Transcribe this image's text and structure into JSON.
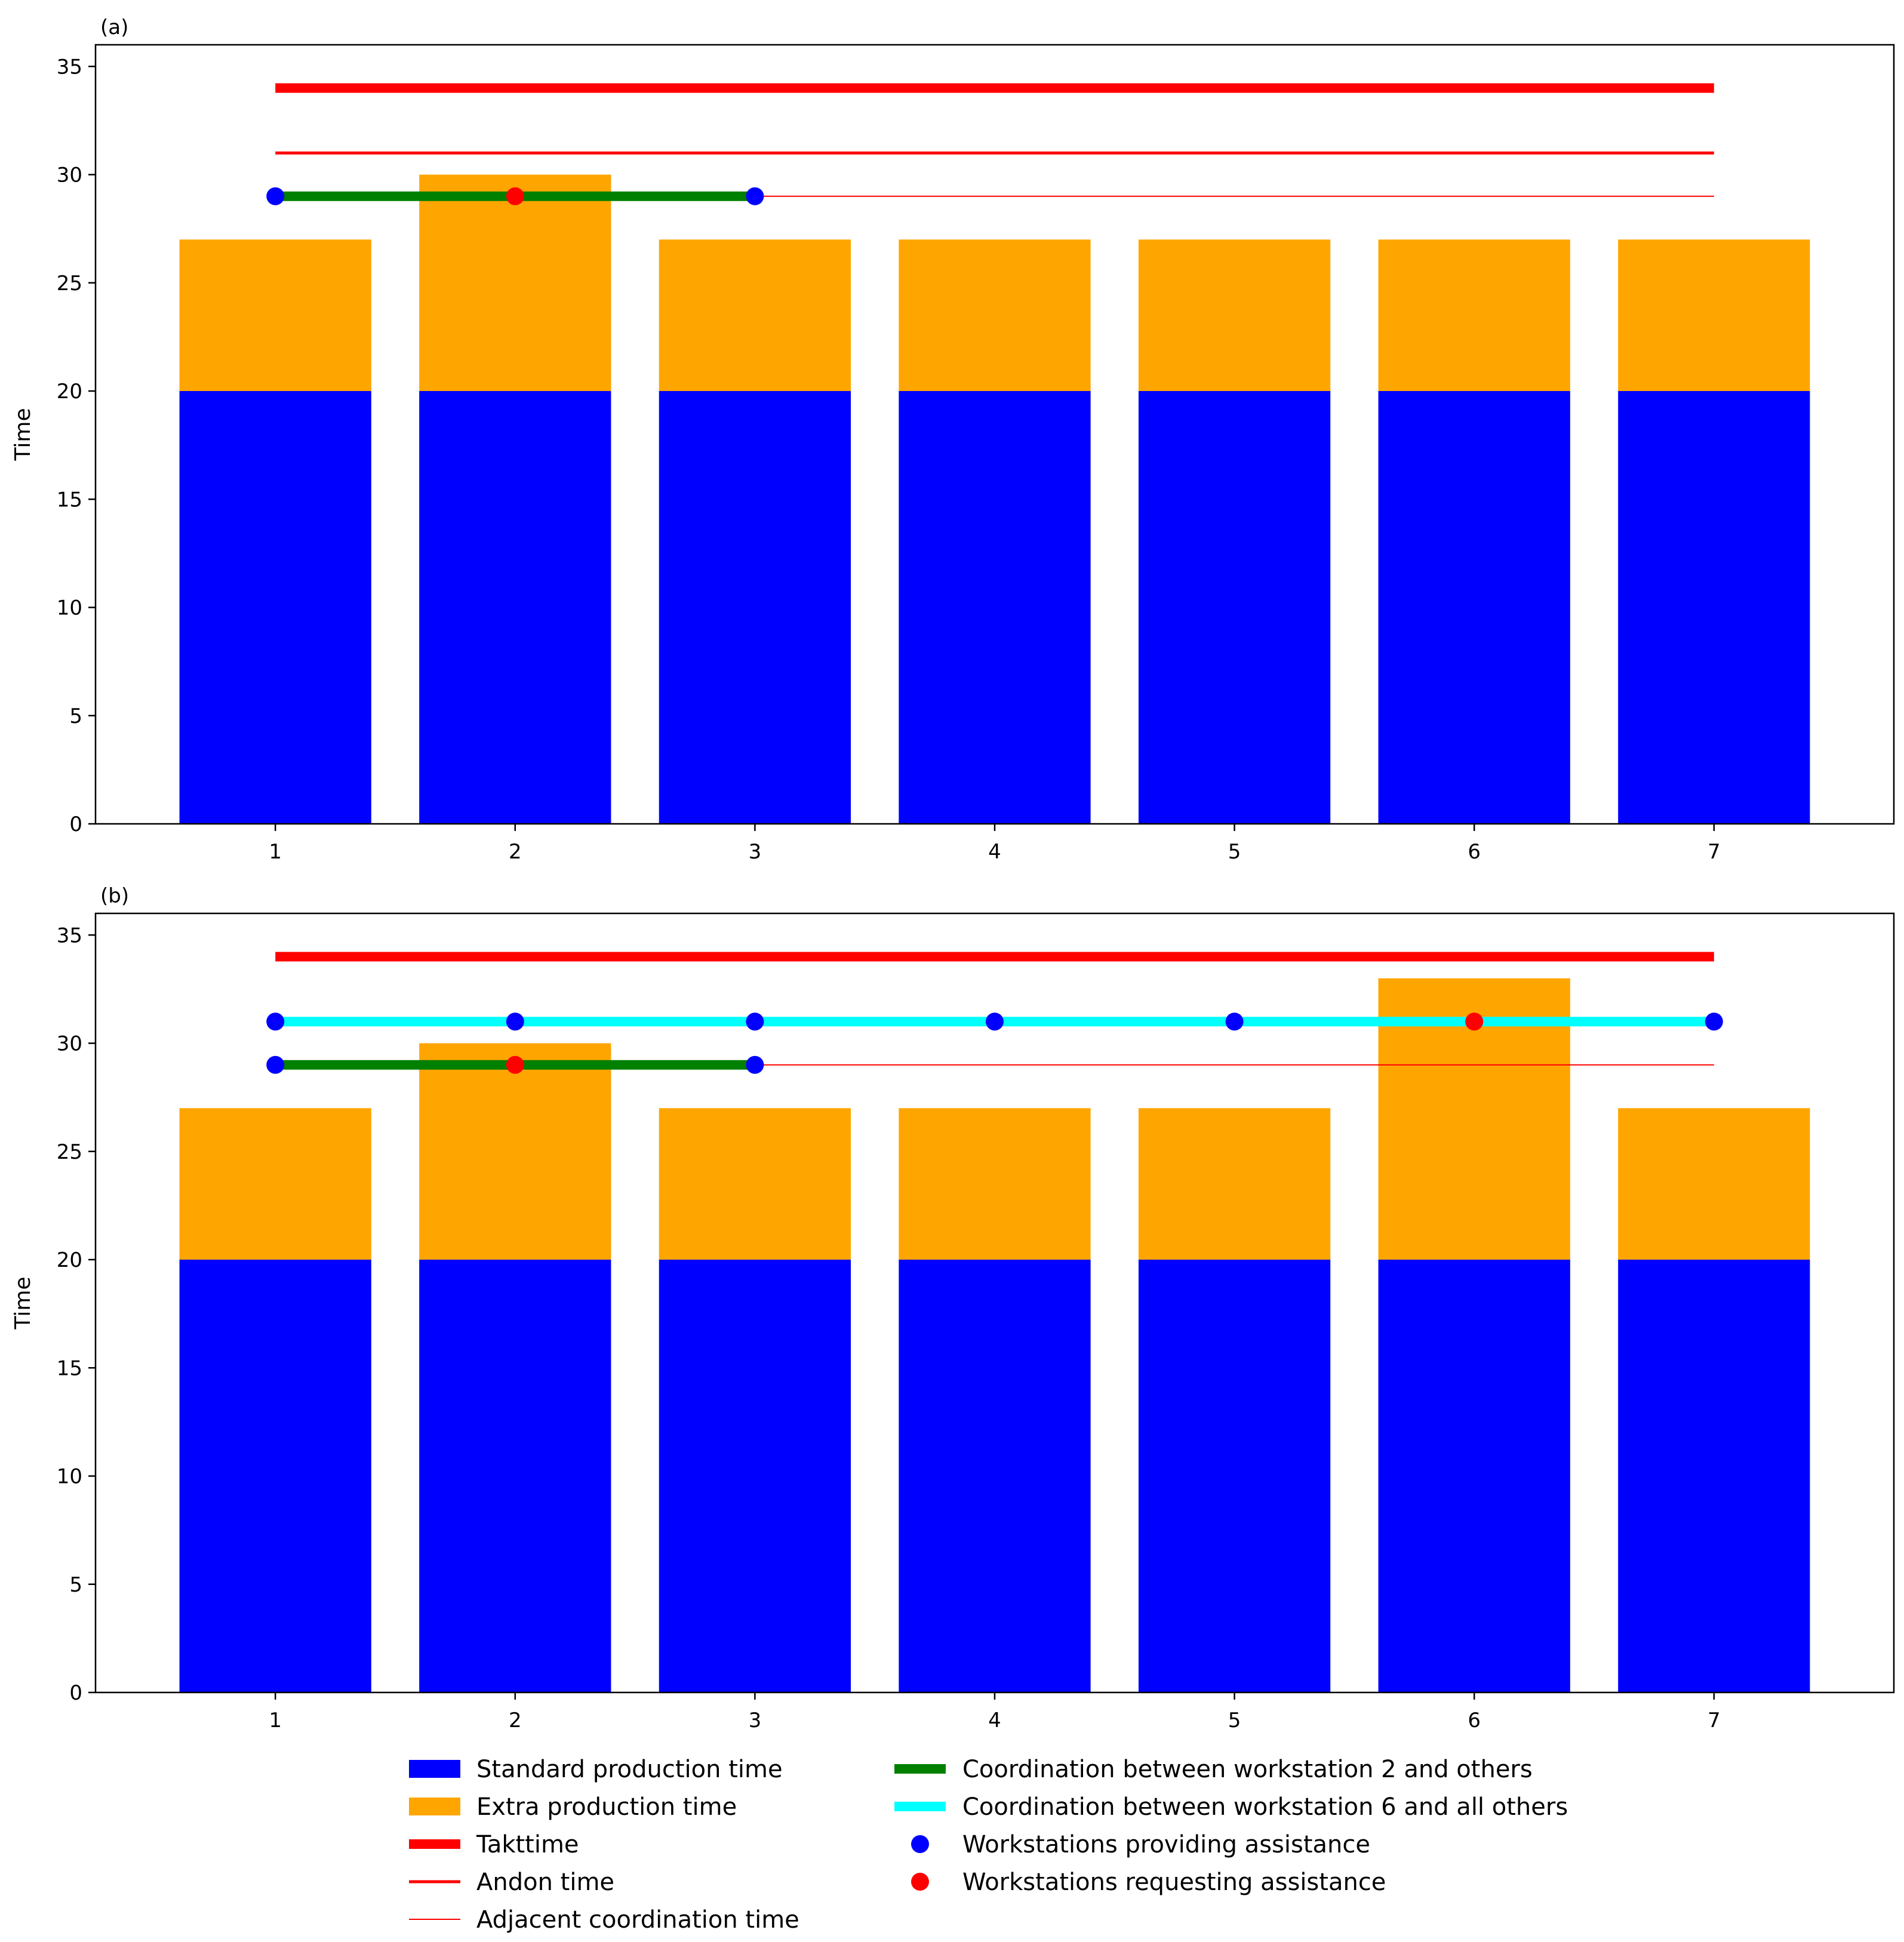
{
  "colors": {
    "standard": "#0000ff",
    "extra": "#ffa500",
    "takt": "#ff0000",
    "green": "#008000",
    "cyan": "#00ffff",
    "helper": "#0000ff",
    "requester": "#ff0000"
  },
  "chart_data": [
    {
      "type": "bar",
      "panel_label": "(a)",
      "ylabel": "Time",
      "xlabel": "",
      "ylim": [
        0,
        36
      ],
      "yticks": [
        "0",
        "5",
        "10",
        "15",
        "20",
        "25",
        "30",
        "35"
      ],
      "categories": [
        "1",
        "2",
        "3",
        "4",
        "5",
        "6",
        "7"
      ],
      "series": [
        {
          "name": "Standard production time",
          "values": [
            20,
            20,
            20,
            20,
            20,
            20,
            20
          ]
        },
        {
          "name": "Extra production time",
          "values": [
            7,
            10,
            7,
            7,
            7,
            7,
            7
          ]
        }
      ],
      "lines": [
        {
          "name": "Takttime",
          "y": 34,
          "x_from": 1,
          "x_to": 7
        },
        {
          "name": "Andon time",
          "y": 31,
          "x_from": 1,
          "x_to": 7
        },
        {
          "name": "Adjacent coordination time",
          "y": 29,
          "x_from": 1,
          "x_to": 7
        },
        {
          "name": "Coordination between workstation 2 and others",
          "y": 29,
          "x_from": 1,
          "x_to": 3
        }
      ],
      "points": [
        {
          "x": 1,
          "y": 29,
          "role": "providing"
        },
        {
          "x": 2,
          "y": 29,
          "role": "requesting"
        },
        {
          "x": 3,
          "y": 29,
          "role": "providing"
        }
      ]
    },
    {
      "type": "bar",
      "panel_label": "(b)",
      "ylabel": "Time",
      "xlabel": "",
      "ylim": [
        0,
        36
      ],
      "yticks": [
        "0",
        "5",
        "10",
        "15",
        "20",
        "25",
        "30",
        "35"
      ],
      "categories": [
        "1",
        "2",
        "3",
        "4",
        "5",
        "6",
        "7"
      ],
      "series": [
        {
          "name": "Standard production time",
          "values": [
            20,
            20,
            20,
            20,
            20,
            20,
            20
          ]
        },
        {
          "name": "Extra production time",
          "values": [
            7,
            10,
            7,
            7,
            7,
            13,
            7
          ]
        }
      ],
      "lines": [
        {
          "name": "Takttime",
          "y": 34,
          "x_from": 1,
          "x_to": 7
        },
        {
          "name": "Coordination between workstation 6 and all others",
          "y": 31,
          "x_from": 1,
          "x_to": 7
        },
        {
          "name": "Adjacent coordination time",
          "y": 29,
          "x_from": 1,
          "x_to": 7
        },
        {
          "name": "Coordination between workstation 2 and others",
          "y": 29,
          "x_from": 1,
          "x_to": 3
        }
      ],
      "points": [
        {
          "x": 1,
          "y": 31,
          "role": "providing"
        },
        {
          "x": 2,
          "y": 31,
          "role": "providing"
        },
        {
          "x": 3,
          "y": 31,
          "role": "providing"
        },
        {
          "x": 4,
          "y": 31,
          "role": "providing"
        },
        {
          "x": 5,
          "y": 31,
          "role": "providing"
        },
        {
          "x": 6,
          "y": 31,
          "role": "requesting"
        },
        {
          "x": 7,
          "y": 31,
          "role": "providing"
        },
        {
          "x": 1,
          "y": 29,
          "role": "providing"
        },
        {
          "x": 2,
          "y": 29,
          "role": "requesting"
        },
        {
          "x": 3,
          "y": 29,
          "role": "providing"
        }
      ]
    }
  ],
  "legend": {
    "left": [
      {
        "label": "Standard production time",
        "kind": "patch",
        "color_key": "standard"
      },
      {
        "label": "Extra production time",
        "kind": "patch",
        "color_key": "extra"
      },
      {
        "label": "Takttime",
        "kind": "thick-line",
        "color_key": "takt"
      },
      {
        "label": "Andon time",
        "kind": "line",
        "color_key": "takt"
      },
      {
        "label": "Adjacent coordination time",
        "kind": "thin-line",
        "color_key": "takt"
      }
    ],
    "right": [
      {
        "label": "Coordination between workstation 2 and others",
        "kind": "thick-line",
        "color_key": "green"
      },
      {
        "label": "Coordination between workstation 6 and all others",
        "kind": "thick-line",
        "color_key": "cyan"
      },
      {
        "label": "Workstations providing assistance",
        "kind": "dot",
        "color_key": "helper"
      },
      {
        "label": "Workstations requesting assistance",
        "kind": "dot",
        "color_key": "requester"
      }
    ]
  }
}
